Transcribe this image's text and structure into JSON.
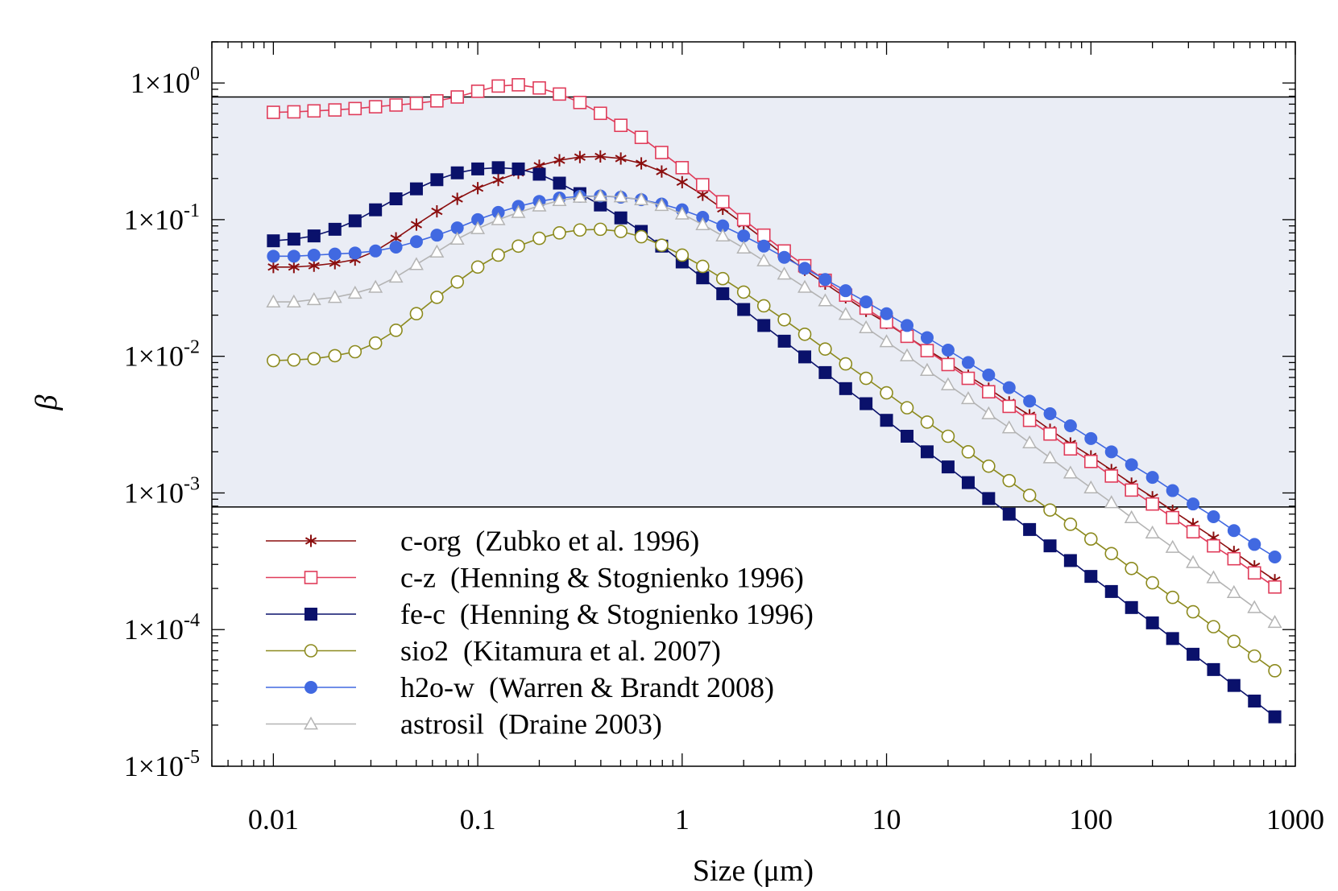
{
  "chart_data": {
    "type": "line",
    "xlabel": "Size (μm)",
    "ylabel": "β",
    "x_scale": "log",
    "y_scale": "log",
    "xlim": [
      0.005,
      1000
    ],
    "ylim": [
      1e-05,
      2
    ],
    "x_ticks": [
      {
        "value": 0.01,
        "label": "0.01"
      },
      {
        "value": 0.1,
        "label": "0.1"
      },
      {
        "value": 1,
        "label": "1"
      },
      {
        "value": 10,
        "label": "10"
      },
      {
        "value": 100,
        "label": "100"
      },
      {
        "value": 1000,
        "label": "1000"
      }
    ],
    "y_ticks": [
      {
        "value": 1,
        "mantissa": "1×10",
        "exponent": "0"
      },
      {
        "value": 0.1,
        "mantissa": "1×10",
        "exponent": "-1"
      },
      {
        "value": 0.01,
        "mantissa": "1×10",
        "exponent": "-2"
      },
      {
        "value": 0.001,
        "mantissa": "1×10",
        "exponent": "-3"
      },
      {
        "value": 0.0001,
        "mantissa": "1×10",
        "exponent": "-4"
      },
      {
        "value": 1e-05,
        "mantissa": "1×10",
        "exponent": "-5"
      }
    ],
    "shaded_band": {
      "ymin": 0.00079,
      "ymax": 0.79,
      "color": "#eaedf5"
    },
    "legend_position": "bottom-left",
    "x": [
      0.01,
      0.0126,
      0.0158,
      0.02,
      0.0251,
      0.0316,
      0.0398,
      0.0501,
      0.0631,
      0.0794,
      0.1,
      0.126,
      0.158,
      0.2,
      0.251,
      0.316,
      0.398,
      0.501,
      0.631,
      0.794,
      1,
      1.26,
      1.58,
      2,
      2.51,
      3.16,
      3.98,
      5.01,
      6.31,
      7.94,
      10,
      12.6,
      15.8,
      20,
      25.1,
      31.6,
      39.8,
      50.1,
      63.1,
      79.4,
      100,
      126,
      158,
      200,
      251,
      316,
      398,
      501,
      631,
      794
    ],
    "series": [
      {
        "name": "c-org  (Zubko et al. 1996)",
        "color": "#8b0e0e",
        "marker": "star",
        "values": [
          0.045,
          0.045,
          0.046,
          0.048,
          0.051,
          0.059,
          0.073,
          0.092,
          0.115,
          0.142,
          0.17,
          0.195,
          0.22,
          0.248,
          0.272,
          0.287,
          0.29,
          0.28,
          0.258,
          0.225,
          0.188,
          0.152,
          0.12,
          0.093,
          0.072,
          0.055,
          0.043,
          0.034,
          0.027,
          0.0215,
          0.0175,
          0.014,
          0.0112,
          0.009,
          0.0072,
          0.0058,
          0.0046,
          0.0037,
          0.0029,
          0.0023,
          0.00185,
          0.00147,
          0.00117,
          0.00093,
          0.00074,
          0.00059,
          0.00047,
          0.00037,
          0.00029,
          0.00023
        ]
      },
      {
        "name": "c-z  (Henning & Stognienko 1996)",
        "color": "#e03c5a",
        "marker": "open-square",
        "values": [
          0.61,
          0.615,
          0.625,
          0.635,
          0.65,
          0.67,
          0.69,
          0.71,
          0.74,
          0.79,
          0.87,
          0.95,
          0.97,
          0.92,
          0.83,
          0.72,
          0.6,
          0.49,
          0.4,
          0.31,
          0.24,
          0.18,
          0.135,
          0.1,
          0.077,
          0.059,
          0.046,
          0.036,
          0.028,
          0.0225,
          0.0178,
          0.014,
          0.011,
          0.0087,
          0.0069,
          0.0055,
          0.0043,
          0.0034,
          0.0027,
          0.0021,
          0.0017,
          0.00133,
          0.00105,
          0.00083,
          0.00066,
          0.00052,
          0.00041,
          0.00033,
          0.00026,
          0.000205
        ]
      },
      {
        "name": "fe-c  (Henning & Stognienko 1996)",
        "color": "#0a116b",
        "marker": "filled-square",
        "values": [
          0.07,
          0.072,
          0.076,
          0.085,
          0.098,
          0.118,
          0.142,
          0.168,
          0.196,
          0.22,
          0.235,
          0.24,
          0.235,
          0.215,
          0.185,
          0.155,
          0.128,
          0.103,
          0.082,
          0.064,
          0.049,
          0.0375,
          0.0287,
          0.022,
          0.0168,
          0.0129,
          0.0099,
          0.0076,
          0.0058,
          0.0045,
          0.0034,
          0.0026,
          0.002,
          0.00155,
          0.00119,
          0.00091,
          0.0007,
          0.00054,
          0.00041,
          0.00032,
          0.000245,
          0.00019,
          0.000145,
          0.000112,
          8.6e-05,
          6.6e-05,
          5.1e-05,
          3.9e-05,
          3e-05,
          2.3e-05
        ]
      },
      {
        "name": "sio2  (Kitamura et al. 2007)",
        "color": "#8c8a1e",
        "marker": "open-circle",
        "values": [
          0.0093,
          0.0094,
          0.0096,
          0.0101,
          0.0108,
          0.0125,
          0.0155,
          0.0205,
          0.027,
          0.035,
          0.045,
          0.055,
          0.064,
          0.073,
          0.08,
          0.084,
          0.085,
          0.082,
          0.075,
          0.065,
          0.055,
          0.0455,
          0.037,
          0.0295,
          0.0234,
          0.0185,
          0.0145,
          0.0113,
          0.0088,
          0.0069,
          0.0054,
          0.0042,
          0.0033,
          0.0026,
          0.002,
          0.00157,
          0.00123,
          0.00096,
          0.00075,
          0.00059,
          0.00046,
          0.00036,
          0.00028,
          0.00022,
          0.000172,
          0.000135,
          0.000105,
          8.2e-05,
          6.4e-05,
          5e-05
        ]
      },
      {
        "name": "h2o-w  (Warren & Brandt 2008)",
        "color": "#4169e1",
        "marker": "filled-circle",
        "values": [
          0.054,
          0.054,
          0.055,
          0.056,
          0.057,
          0.059,
          0.063,
          0.069,
          0.077,
          0.087,
          0.1,
          0.113,
          0.125,
          0.136,
          0.144,
          0.148,
          0.149,
          0.146,
          0.14,
          0.13,
          0.118,
          0.104,
          0.09,
          0.076,
          0.064,
          0.053,
          0.044,
          0.0365,
          0.0302,
          0.025,
          0.0205,
          0.0168,
          0.0137,
          0.0111,
          0.009,
          0.0073,
          0.0059,
          0.0047,
          0.0038,
          0.0031,
          0.0025,
          0.002,
          0.00161,
          0.0013,
          0.00104,
          0.00083,
          0.00067,
          0.00053,
          0.00042,
          0.00034
        ]
      },
      {
        "name": "astrosil  (Draine 2003)",
        "color": "#b4b4b4",
        "marker": "open-triangle",
        "values": [
          0.025,
          0.025,
          0.026,
          0.027,
          0.029,
          0.032,
          0.038,
          0.047,
          0.058,
          0.072,
          0.086,
          0.1,
          0.113,
          0.126,
          0.138,
          0.146,
          0.149,
          0.147,
          0.14,
          0.127,
          0.11,
          0.092,
          0.076,
          0.062,
          0.05,
          0.04,
          0.032,
          0.0255,
          0.0203,
          0.0162,
          0.0128,
          0.0101,
          0.0079,
          0.0062,
          0.0049,
          0.0038,
          0.003,
          0.00233,
          0.00181,
          0.0014,
          0.00109,
          0.00085,
          0.00066,
          0.00051,
          0.0004,
          0.00031,
          0.00024,
          0.000187,
          0.000145,
          0.000113
        ]
      }
    ]
  }
}
